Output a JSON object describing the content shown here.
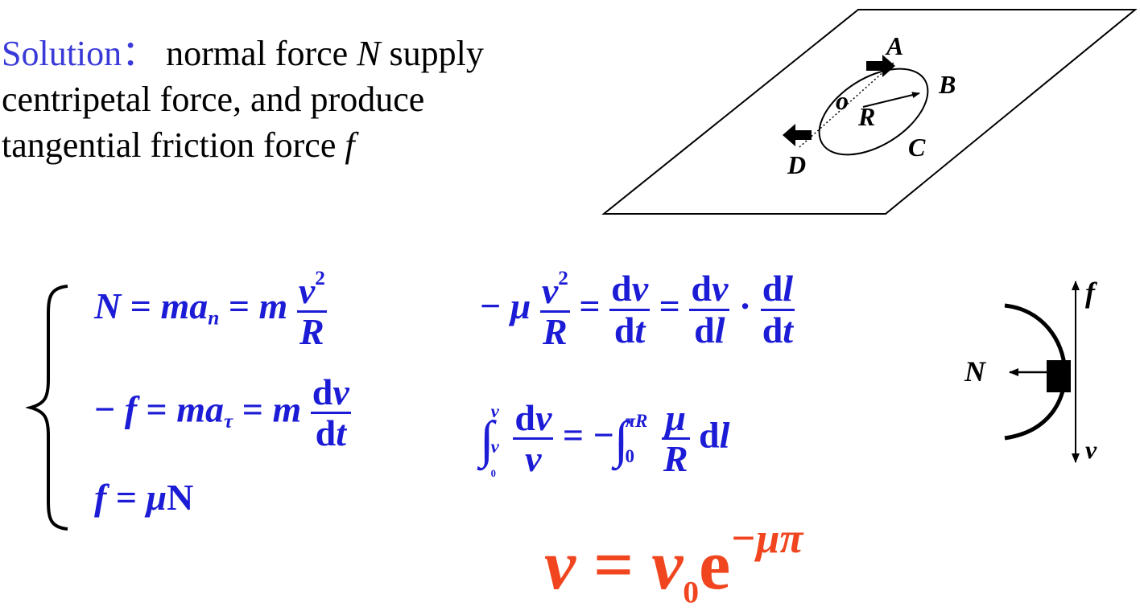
{
  "intro": {
    "label": "Solution",
    "colon": "：",
    "line1_rest": "normal force",
    "N": "N",
    "supply": "supply",
    "line2": "centripetal force, and produce",
    "line3": "tangential friction force",
    "f": "f"
  },
  "figure1": {
    "labels": {
      "A": "A",
      "B": "B",
      "C": "C",
      "D": "D",
      "O": "o",
      "R": "R"
    }
  },
  "figure2": {
    "labels": {
      "f": "f",
      "N": "N",
      "v": "v"
    }
  },
  "equations": {
    "eq1": {
      "lhs": "N",
      "eq": "=",
      "mid": "ma",
      "mid_sub": "n",
      "coef": "m",
      "num_var": "v",
      "num_exp": "2",
      "den": "R"
    },
    "eq2": {
      "minus": "−",
      "lhs": "f",
      "eq": "=",
      "mid": "ma",
      "mid_sub": "τ",
      "coef": "m",
      "num": "d",
      "num_var": "v",
      "den": "d",
      "den_var": "t"
    },
    "eq3": {
      "lhs": "f",
      "eq": "=",
      "rhs_mu": "μ",
      "rhs_N": "N"
    },
    "eq4": {
      "minus": "−",
      "mu": "μ",
      "num_var": "v",
      "num_exp": "2",
      "den": "R",
      "eq": "=",
      "d": "d",
      "v": "v",
      "t": "t",
      "l": "l",
      "dot": "·"
    },
    "eq5": {
      "int": "∫",
      "upper": "v",
      "lower": "v",
      "lower_sub": "0",
      "d": "d",
      "v": "v",
      "eq": "=",
      "minus": "−",
      "upper2": "πR",
      "lower2": "0",
      "mu": "μ",
      "R": "R",
      "l": "l"
    }
  },
  "result": {
    "lhs": "v",
    "eq": " = ",
    "v": "v",
    "sub": "0",
    "e": "e",
    "exp": "−μπ"
  },
  "colors": {
    "text": "#000000",
    "label": "#3a3ad8",
    "math": "#1c1cd6",
    "result": "#f0451e"
  }
}
